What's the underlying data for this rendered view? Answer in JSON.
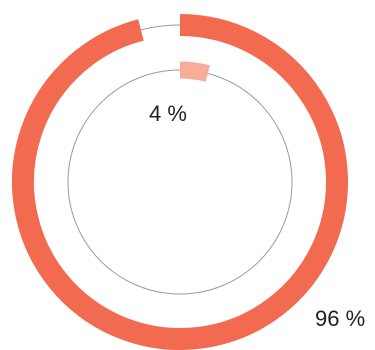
{
  "chart_data": {
    "type": "pie",
    "variant": "concentric-rings",
    "title": "",
    "rings": [
      {
        "ring": "outer",
        "value": 96,
        "label": "96 %",
        "color": "#f26b50",
        "track_color": "#9a9a9a",
        "label_placement": "bottom-right"
      },
      {
        "ring": "inner",
        "value": 4,
        "label": "4 %",
        "color": "#f7ad98",
        "track_color": "#9a9a9a",
        "label_placement": "below-arc-start"
      }
    ],
    "start_angle_deg": 0,
    "direction": "clockwise",
    "legend": "none",
    "grid": false
  }
}
